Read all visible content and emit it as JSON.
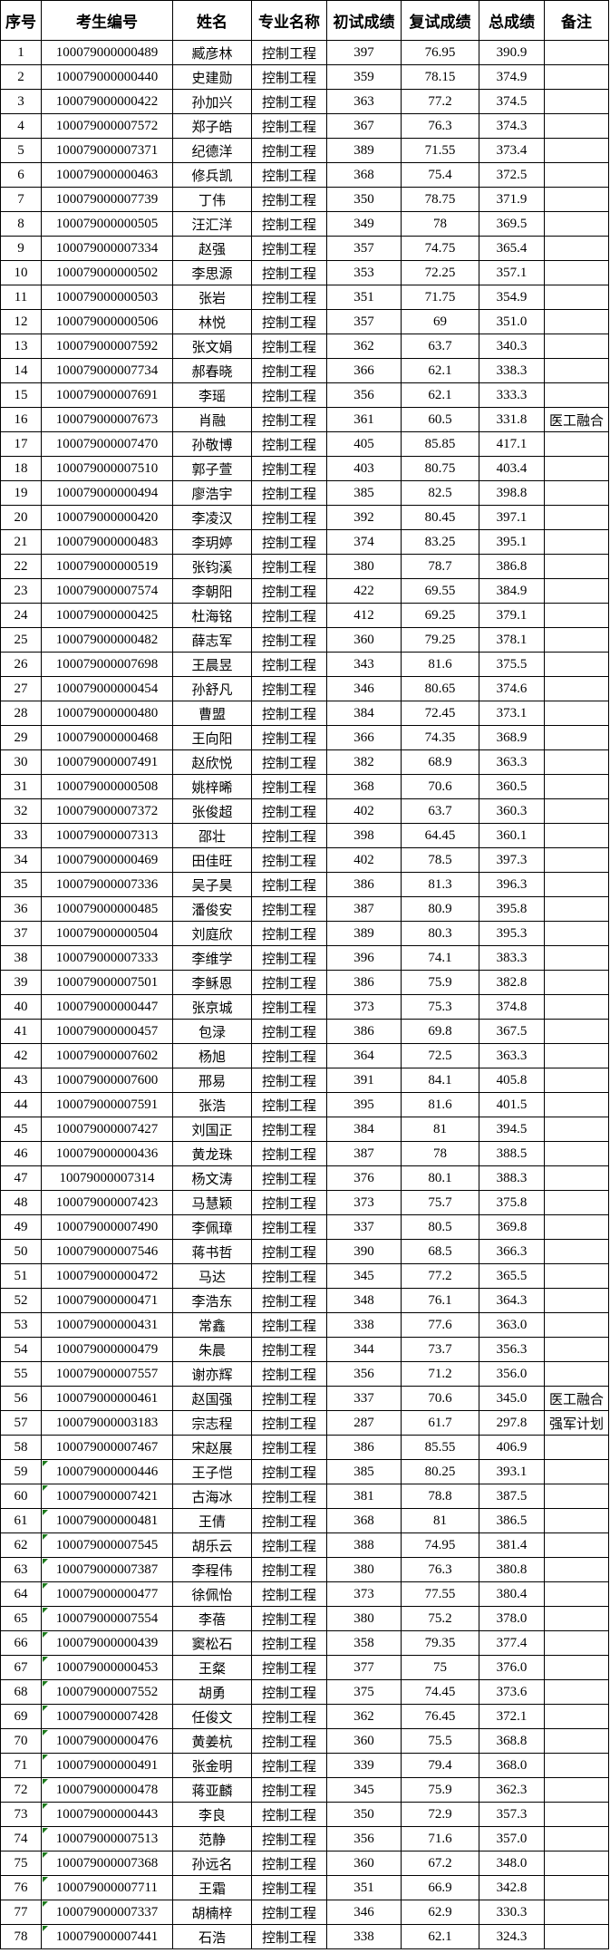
{
  "table": {
    "columns": [
      "序号",
      "考生编号",
      "姓名",
      "专业名称",
      "初试成绩",
      "复试成绩",
      "总成绩",
      "备注"
    ],
    "row_fields": [
      "no",
      "candidate_id",
      "name",
      "major",
      "initial_score",
      "retest_score",
      "total_score",
      "remark",
      "green_flag"
    ],
    "colors": {
      "border": "#000000",
      "text": "#000000",
      "background": "#ffffff",
      "error_triangle": "#1c7a1c"
    },
    "rows": [
      [
        "1",
        "100079000000489",
        "臧彦林",
        "控制工程",
        "397",
        "76.95",
        "390.9",
        "",
        0
      ],
      [
        "2",
        "100079000000440",
        "史建勋",
        "控制工程",
        "359",
        "78.15",
        "374.9",
        "",
        0
      ],
      [
        "3",
        "100079000000422",
        "孙加兴",
        "控制工程",
        "363",
        "77.2",
        "374.5",
        "",
        0
      ],
      [
        "4",
        "100079000007572",
        "郑子皓",
        "控制工程",
        "367",
        "76.3",
        "374.3",
        "",
        0
      ],
      [
        "5",
        "100079000007371",
        "纪德洋",
        "控制工程",
        "389",
        "71.55",
        "373.4",
        "",
        0
      ],
      [
        "6",
        "100079000000463",
        "修兵凯",
        "控制工程",
        "368",
        "75.4",
        "372.5",
        "",
        0
      ],
      [
        "7",
        "100079000007739",
        "丁伟",
        "控制工程",
        "350",
        "78.75",
        "371.9",
        "",
        0
      ],
      [
        "8",
        "100079000000505",
        "汪汇洋",
        "控制工程",
        "349",
        "78",
        "369.5",
        "",
        0
      ],
      [
        "9",
        "100079000007334",
        "赵强",
        "控制工程",
        "357",
        "74.75",
        "365.4",
        "",
        0
      ],
      [
        "10",
        "100079000000502",
        "李思源",
        "控制工程",
        "353",
        "72.25",
        "357.1",
        "",
        0
      ],
      [
        "11",
        "100079000000503",
        "张岩",
        "控制工程",
        "351",
        "71.75",
        "354.9",
        "",
        0
      ],
      [
        "12",
        "100079000000506",
        "林悦",
        "控制工程",
        "357",
        "69",
        "351.0",
        "",
        0
      ],
      [
        "13",
        "100079000007592",
        "张文娟",
        "控制工程",
        "362",
        "63.7",
        "340.3",
        "",
        0
      ],
      [
        "14",
        "100079000007734",
        "郝春晓",
        "控制工程",
        "366",
        "62.1",
        "338.3",
        "",
        0
      ],
      [
        "15",
        "100079000007691",
        "李瑶",
        "控制工程",
        "356",
        "62.1",
        "333.3",
        "",
        0
      ],
      [
        "16",
        "100079000007673",
        "肖融",
        "控制工程",
        "361",
        "60.5",
        "331.8",
        "医工融合",
        0
      ],
      [
        "17",
        "100079000007470",
        "孙敬博",
        "控制工程",
        "405",
        "85.85",
        "417.1",
        "",
        0
      ],
      [
        "18",
        "100079000007510",
        "郭子萱",
        "控制工程",
        "403",
        "80.75",
        "403.4",
        "",
        0
      ],
      [
        "19",
        "100079000000494",
        "廖浩宇",
        "控制工程",
        "385",
        "82.5",
        "398.8",
        "",
        0
      ],
      [
        "20",
        "100079000000420",
        "李凌汉",
        "控制工程",
        "392",
        "80.45",
        "397.1",
        "",
        0
      ],
      [
        "21",
        "100079000000483",
        "李玥婷",
        "控制工程",
        "374",
        "83.25",
        "395.1",
        "",
        0
      ],
      [
        "22",
        "100079000000519",
        "张钧溪",
        "控制工程",
        "380",
        "78.7",
        "386.8",
        "",
        0
      ],
      [
        "23",
        "100079000007574",
        "李朝阳",
        "控制工程",
        "422",
        "69.55",
        "384.9",
        "",
        0
      ],
      [
        "24",
        "100079000000425",
        "杜海铭",
        "控制工程",
        "412",
        "69.25",
        "379.1",
        "",
        0
      ],
      [
        "25",
        "100079000000482",
        "薛志军",
        "控制工程",
        "360",
        "79.25",
        "378.1",
        "",
        0
      ],
      [
        "26",
        "100079000007698",
        "王晨昱",
        "控制工程",
        "343",
        "81.6",
        "375.5",
        "",
        0
      ],
      [
        "27",
        "100079000000454",
        "孙舒凡",
        "控制工程",
        "346",
        "80.65",
        "374.6",
        "",
        0
      ],
      [
        "28",
        "100079000000480",
        "曹盟",
        "控制工程",
        "384",
        "72.45",
        "373.1",
        "",
        0
      ],
      [
        "29",
        "100079000000468",
        "王向阳",
        "控制工程",
        "366",
        "74.35",
        "368.9",
        "",
        0
      ],
      [
        "30",
        "100079000007491",
        "赵欣悦",
        "控制工程",
        "382",
        "68.9",
        "363.3",
        "",
        0
      ],
      [
        "31",
        "100079000000508",
        "姚梓晞",
        "控制工程",
        "368",
        "70.6",
        "360.5",
        "",
        0
      ],
      [
        "32",
        "100079000007372",
        "张俊超",
        "控制工程",
        "402",
        "63.7",
        "360.3",
        "",
        0
      ],
      [
        "33",
        "100079000007313",
        "邵壮",
        "控制工程",
        "398",
        "64.45",
        "360.1",
        "",
        0
      ],
      [
        "34",
        "100079000000469",
        "田佳旺",
        "控制工程",
        "402",
        "78.5",
        "397.3",
        "",
        0
      ],
      [
        "35",
        "100079000007336",
        "吴子昊",
        "控制工程",
        "386",
        "81.3",
        "396.3",
        "",
        0
      ],
      [
        "36",
        "100079000000485",
        "潘俊安",
        "控制工程",
        "387",
        "80.9",
        "395.8",
        "",
        0
      ],
      [
        "37",
        "100079000000504",
        "刘庭欣",
        "控制工程",
        "389",
        "80.3",
        "395.3",
        "",
        0
      ],
      [
        "38",
        "100079000007333",
        "李维学",
        "控制工程",
        "396",
        "74.1",
        "383.3",
        "",
        0
      ],
      [
        "39",
        "100079000007501",
        "李稣恩",
        "控制工程",
        "386",
        "75.9",
        "382.8",
        "",
        0
      ],
      [
        "40",
        "100079000000447",
        "张京城",
        "控制工程",
        "373",
        "75.3",
        "374.8",
        "",
        0
      ],
      [
        "41",
        "100079000000457",
        "包渌",
        "控制工程",
        "386",
        "69.8",
        "367.5",
        "",
        0
      ],
      [
        "42",
        "100079000007602",
        "杨旭",
        "控制工程",
        "364",
        "72.5",
        "363.3",
        "",
        0
      ],
      [
        "43",
        "100079000007600",
        "邢易",
        "控制工程",
        "391",
        "84.1",
        "405.8",
        "",
        0
      ],
      [
        "44",
        "100079000007591",
        "张浩",
        "控制工程",
        "395",
        "81.6",
        "401.5",
        "",
        0
      ],
      [
        "45",
        "100079000007427",
        "刘国正",
        "控制工程",
        "384",
        "81",
        "394.5",
        "",
        0
      ],
      [
        "46",
        "100079000000436",
        "黄龙珠",
        "控制工程",
        "387",
        "78",
        "388.5",
        "",
        0
      ],
      [
        "47",
        "10079000007314",
        "杨文涛",
        "控制工程",
        "376",
        "80.1",
        "388.3",
        "",
        0
      ],
      [
        "48",
        "100079000007423",
        "马慧颖",
        "控制工程",
        "373",
        "75.7",
        "375.8",
        "",
        0
      ],
      [
        "49",
        "100079000007490",
        "李佩璋",
        "控制工程",
        "337",
        "80.5",
        "369.8",
        "",
        0
      ],
      [
        "50",
        "100079000007546",
        "蒋书哲",
        "控制工程",
        "390",
        "68.5",
        "366.3",
        "",
        0
      ],
      [
        "51",
        "100079000000472",
        "马达",
        "控制工程",
        "345",
        "77.2",
        "365.5",
        "",
        0
      ],
      [
        "52",
        "100079000000471",
        "李浩东",
        "控制工程",
        "348",
        "76.1",
        "364.3",
        "",
        0
      ],
      [
        "53",
        "100079000000431",
        "常鑫",
        "控制工程",
        "338",
        "77.6",
        "363.0",
        "",
        0
      ],
      [
        "54",
        "100079000000479",
        "朱晨",
        "控制工程",
        "344",
        "73.7",
        "356.3",
        "",
        0
      ],
      [
        "55",
        "100079000007557",
        "谢亦辉",
        "控制工程",
        "356",
        "71.2",
        "356.0",
        "",
        0
      ],
      [
        "56",
        "100079000000461",
        "赵国强",
        "控制工程",
        "337",
        "70.6",
        "345.0",
        "医工融合",
        0
      ],
      [
        "57",
        "100079000003183",
        "宗志程",
        "控制工程",
        "287",
        "61.7",
        "297.8",
        "强军计划",
        0
      ],
      [
        "58",
        "100079000007467",
        "宋赵展",
        "控制工程",
        "386",
        "85.55",
        "406.9",
        "",
        0
      ],
      [
        "59",
        "100079000000446",
        "王子恺",
        "控制工程",
        "385",
        "80.25",
        "393.1",
        "",
        1
      ],
      [
        "60",
        "100079000007421",
        "古海冰",
        "控制工程",
        "381",
        "78.8",
        "387.5",
        "",
        1
      ],
      [
        "61",
        "100079000000481",
        "王倩",
        "控制工程",
        "368",
        "81",
        "386.5",
        "",
        1
      ],
      [
        "62",
        "100079000007545",
        "胡乐云",
        "控制工程",
        "388",
        "74.95",
        "381.4",
        "",
        1
      ],
      [
        "63",
        "100079000007387",
        "李程伟",
        "控制工程",
        "380",
        "76.3",
        "380.8",
        "",
        1
      ],
      [
        "64",
        "100079000000477",
        "徐佩怡",
        "控制工程",
        "373",
        "77.55",
        "380.4",
        "",
        1
      ],
      [
        "65",
        "100079000007554",
        "李蓓",
        "控制工程",
        "380",
        "75.2",
        "378.0",
        "",
        1
      ],
      [
        "66",
        "100079000000439",
        "窦松石",
        "控制工程",
        "358",
        "79.35",
        "377.4",
        "",
        1
      ],
      [
        "67",
        "100079000000453",
        "王粲",
        "控制工程",
        "377",
        "75",
        "376.0",
        "",
        1
      ],
      [
        "68",
        "100079000007552",
        "胡勇",
        "控制工程",
        "375",
        "74.45",
        "373.6",
        "",
        1
      ],
      [
        "69",
        "100079000007428",
        "任俊文",
        "控制工程",
        "362",
        "76.45",
        "372.1",
        "",
        1
      ],
      [
        "70",
        "100079000000476",
        "黄姜杭",
        "控制工程",
        "360",
        "75.5",
        "368.8",
        "",
        1
      ],
      [
        "71",
        "100079000000491",
        "张金明",
        "控制工程",
        "339",
        "79.4",
        "368.0",
        "",
        1
      ],
      [
        "72",
        "100079000000478",
        "蒋亚麟",
        "控制工程",
        "345",
        "75.9",
        "362.3",
        "",
        1
      ],
      [
        "73",
        "100079000000443",
        "李良",
        "控制工程",
        "350",
        "72.9",
        "357.3",
        "",
        1
      ],
      [
        "74",
        "100079000007513",
        "范静",
        "控制工程",
        "356",
        "71.6",
        "357.0",
        "",
        1
      ],
      [
        "75",
        "100079000007368",
        "孙远名",
        "控制工程",
        "360",
        "67.2",
        "348.0",
        "",
        1
      ],
      [
        "76",
        "100079000007711",
        "王霜",
        "控制工程",
        "351",
        "66.9",
        "342.8",
        "",
        1
      ],
      [
        "77",
        "100079000007337",
        "胡楠梓",
        "控制工程",
        "346",
        "62.9",
        "330.3",
        "",
        1
      ],
      [
        "78",
        "100079000007441",
        "石浩",
        "控制工程",
        "338",
        "62.1",
        "324.3",
        "",
        1
      ]
    ]
  }
}
